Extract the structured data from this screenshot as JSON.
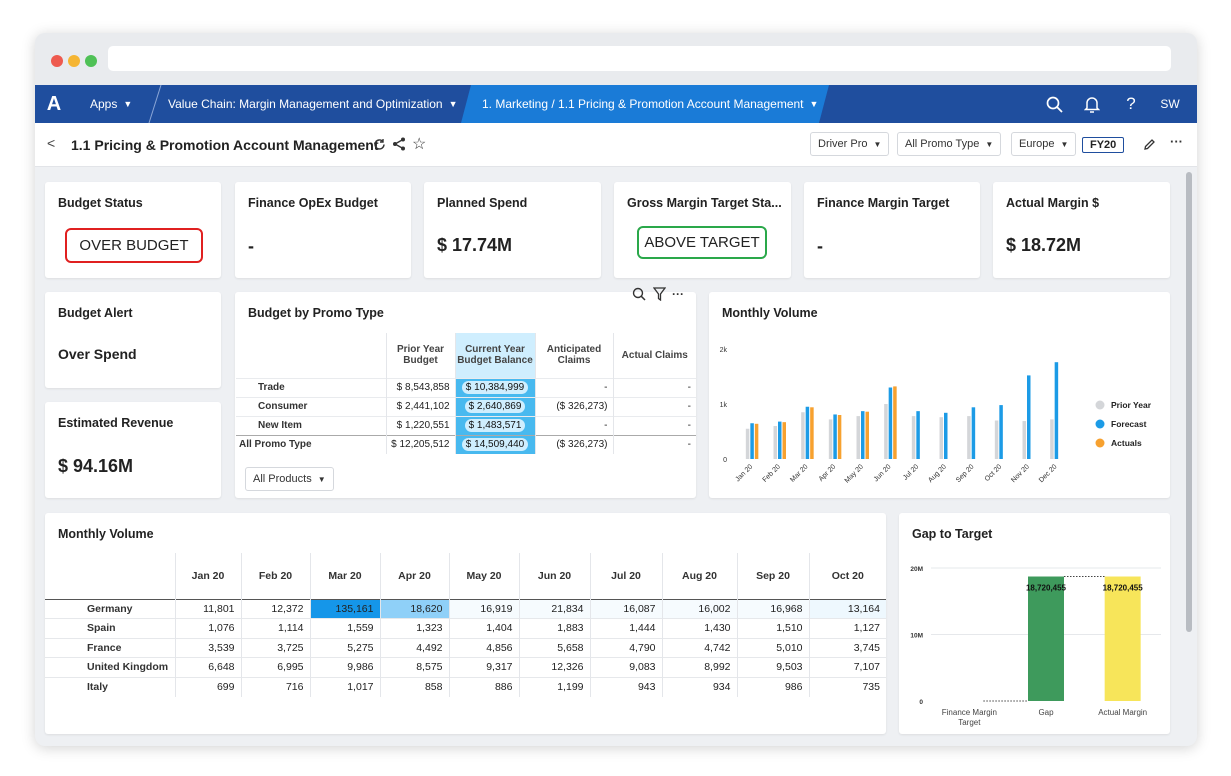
{
  "nav": {
    "logo": "A",
    "apps": "Apps",
    "breadcrumb1": "Value Chain: Margin Management and Optimization",
    "breadcrumb2": "1. Marketing / 1.1 Pricing & Promotion Account Management",
    "user": "SW"
  },
  "header": {
    "back": "<",
    "title": "1.1 Pricing & Promotion Account Management",
    "filters": [
      "Driver Pro",
      "All Promo Type",
      "Europe"
    ],
    "fy": "FY20"
  },
  "kpis": [
    {
      "title": "Budget Status",
      "badge": "OVER BUDGET",
      "badge_color": "#e02020"
    },
    {
      "title": "Finance OpEx Budget",
      "value": "-"
    },
    {
      "title": "Planned Spend",
      "value": "$ 17.74M"
    },
    {
      "title": "Gross Margin Target Sta...",
      "badge": "ABOVE TARGET",
      "badge_color": "#2aa84a"
    },
    {
      "title": "Finance Margin Target",
      "value": "-"
    },
    {
      "title": "Actual Margin $",
      "value": "$ 18.72M"
    }
  ],
  "budget_alert": {
    "title": "Budget Alert",
    "value": "Over Spend"
  },
  "est_revenue": {
    "title": "Estimated Revenue",
    "value": "$ 94.16M"
  },
  "budget_table": {
    "title": "Budget by Promo Type",
    "headers": [
      "Prior Year Budget",
      "Current Year Budget Balance",
      "Anticipated Claims",
      "Actual Claims"
    ],
    "rows": [
      {
        "label": "Trade",
        "prior": "$ 8,543,858",
        "current": "$ 10,384,999",
        "anticipated": "-",
        "actual": "-"
      },
      {
        "label": "Consumer",
        "prior": "$ 2,441,102",
        "current": "$ 2,640,869",
        "anticipated": "($ 326,273)",
        "actual": "-"
      },
      {
        "label": "New Item",
        "prior": "$ 1,220,551",
        "current": "$ 1,483,571",
        "anticipated": "-",
        "actual": "-"
      }
    ],
    "total": {
      "label": "All Promo Type",
      "prior": "$ 12,205,512",
      "current": "$ 14,509,440",
      "anticipated": "($ 326,273)",
      "actual": "-"
    },
    "dropdown": "All Products"
  },
  "monthly_volume_chart": {
    "title": "Monthly Volume",
    "legend": [
      "Prior Year",
      "Forecast",
      "Actuals"
    ],
    "colors": {
      "prior": "#d4d6d9",
      "forecast": "#1c9be6",
      "actuals": "#f7a12f"
    }
  },
  "monthly_table": {
    "title": "Monthly Volume",
    "months": [
      "Jan 20",
      "Feb 20",
      "Mar 20",
      "Apr 20",
      "May 20",
      "Jun 20",
      "Jul 20",
      "Aug 20",
      "Sep 20",
      "Oct 20"
    ],
    "rows": [
      {
        "label": "Germany",
        "values": [
          "11,801",
          "12,372",
          "135,161",
          "18,620",
          "16,919",
          "21,834",
          "16,087",
          "16,002",
          "16,968",
          "13,164"
        ]
      },
      {
        "label": "Spain",
        "values": [
          "1,076",
          "1,114",
          "1,559",
          "1,323",
          "1,404",
          "1,883",
          "1,444",
          "1,430",
          "1,510",
          "1,127"
        ]
      },
      {
        "label": "France",
        "values": [
          "3,539",
          "3,725",
          "5,275",
          "4,492",
          "4,856",
          "5,658",
          "4,790",
          "4,742",
          "5,010",
          "3,745"
        ]
      },
      {
        "label": "United Kingdom",
        "values": [
          "6,648",
          "6,995",
          "9,986",
          "8,575",
          "9,317",
          "12,326",
          "9,083",
          "8,992",
          "9,503",
          "7,107"
        ]
      },
      {
        "label": "Italy",
        "values": [
          "699",
          "716",
          "1,017",
          "858",
          "886",
          "1,199",
          "943",
          "934",
          "986",
          "735"
        ]
      }
    ]
  },
  "gap_chart": {
    "title": "Gap to Target",
    "categories": [
      "Finance Margin Target",
      "Gap",
      "Actual Margin"
    ],
    "labels": [
      "18,720,455",
      "18,720,455"
    ],
    "colors": {
      "gap": "#3e9a5c",
      "actual": "#f7e55a"
    }
  },
  "chart_data": [
    {
      "type": "bar",
      "title": "Monthly Volume",
      "categories": [
        "Jan 20",
        "Feb 20",
        "Mar 20",
        "Apr 20",
        "May 20",
        "Jun 20",
        "Jul 20",
        "Aug 20",
        "Sep 20",
        "Oct 20",
        "Nov 20",
        "Dec 20"
      ],
      "series": [
        {
          "name": "Prior Year",
          "values": [
            550,
            600,
            850,
            720,
            780,
            1000,
            780,
            760,
            780,
            700,
            690,
            720
          ]
        },
        {
          "name": "Forecast",
          "values": [
            650,
            680,
            950,
            810,
            870,
            1300,
            870,
            840,
            940,
            980,
            1520,
            1760
          ]
        },
        {
          "name": "Actuals",
          "values": [
            640,
            670,
            940,
            800,
            860,
            1320,
            null,
            null,
            null,
            null,
            null,
            null
          ]
        }
      ],
      "yticks": [
        "0",
        "1k",
        "2k"
      ],
      "ylim": [
        0,
        2000
      ],
      "legend": "right"
    },
    {
      "type": "bar",
      "title": "Gap to Target",
      "categories": [
        "Finance Margin Target",
        "Gap",
        "Actual Margin"
      ],
      "values": [
        0,
        18720455,
        18720455
      ],
      "yticks": [
        "0",
        "10M",
        "20M"
      ],
      "ylim": [
        0,
        20000000
      ]
    }
  ]
}
